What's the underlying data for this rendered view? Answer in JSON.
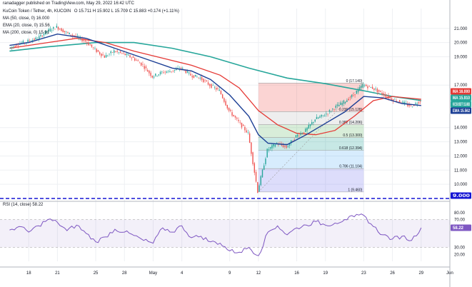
{
  "header": {
    "published": "ranadagger published on TradingView.com, May 29, 2022 16:42 UTC",
    "symbol_line": "KuCoin Token / Tether, 4h, KUCOIN",
    "ohlc": "O 15.711  H 15.902  L 15.709  C 15.883  +0.174 (+1.11%)",
    "ma50": "MA (50, close, 0)  16.000",
    "ema20": "EMA (20, close, 0)  15.56",
    "ma200": "MA (200, close, 0)  15.91",
    "rsi": "RSI (14, close)  58.22"
  },
  "colors": {
    "up": "#26a69a",
    "down": "#ef5350",
    "ema20": "#1c3f95",
    "ma50": "#e53935",
    "ma200": "#26a69a",
    "rsi": "#7e57c2",
    "support": "#1515d4",
    "usd": "#2962ff"
  },
  "chart_data": {
    "type": "candlestick",
    "x_ticks": [
      "18",
      "21",
      "25",
      "28",
      "May",
      "4",
      "9",
      "12",
      "16",
      "19",
      "23",
      "26",
      "29",
      "Jun"
    ],
    "y_ticks": [
      21.0,
      20.0,
      19.0,
      17.0,
      14.0,
      13.0,
      12.0,
      11.0,
      10.0
    ],
    "ylim": [
      9.0,
      22.4
    ],
    "support_level": 9.0,
    "price_tags": [
      {
        "label": "MA",
        "value": "16.000",
        "color": "#e53935"
      },
      {
        "label": "MA",
        "value": "15.910",
        "color": "#26a69a"
      },
      {
        "label": "KCSUSDT",
        "value": "15.883",
        "color": "#26a69a"
      },
      {
        "label": "EMA",
        "value": "15.562",
        "color": "#1c3f95"
      },
      {
        "label": "",
        "value": "9.000",
        "color": "#1515d4"
      }
    ],
    "fibonacci": [
      {
        "ratio": "0",
        "price": "17.140"
      },
      {
        "ratio": "0.236",
        "price": "15.128"
      },
      {
        "ratio": "0.382",
        "price": "14.206"
      },
      {
        "ratio": "0.5",
        "price": "13.300"
      },
      {
        "ratio": "0.618",
        "price": "12.394"
      },
      {
        "ratio": "0.786",
        "price": "11.104"
      },
      {
        "ratio": "1",
        "price": "9.460"
      }
    ],
    "price_path": [
      [
        "Apr 16",
        19.6
      ],
      [
        "Apr 17",
        19.9
      ],
      [
        "Apr 18",
        20.1
      ],
      [
        "Apr 19",
        20.3
      ],
      [
        "Apr 20",
        20.8
      ],
      [
        "Apr 21",
        21.1
      ],
      [
        "Apr 22",
        20.7
      ],
      [
        "Apr 23",
        20.4
      ],
      [
        "Apr 24",
        20.1
      ],
      [
        "Apr 25",
        19.5
      ],
      [
        "Apr 26",
        19.0
      ],
      [
        "Apr 27",
        19.4
      ],
      [
        "Apr 28",
        19.2
      ],
      [
        "Apr 29",
        18.9
      ],
      [
        "Apr 30",
        18.4
      ],
      [
        "May 1",
        17.6
      ],
      [
        "May 2",
        17.9
      ],
      [
        "May 3",
        18.0
      ],
      [
        "May 4",
        18.2
      ],
      [
        "May 5",
        17.7
      ],
      [
        "May 6",
        17.5
      ],
      [
        "May 7",
        17.0
      ],
      [
        "May 8",
        16.6
      ],
      [
        "May 9",
        15.2
      ],
      [
        "May 10",
        14.4
      ],
      [
        "May 11",
        13.6
      ],
      [
        "May 12",
        9.5
      ],
      [
        "May 13",
        12.4
      ],
      [
        "May 14",
        12.9
      ],
      [
        "May 15",
        12.6
      ],
      [
        "May 16",
        13.4
      ],
      [
        "May 17",
        13.8
      ],
      [
        "May 18",
        14.6
      ],
      [
        "May 19",
        14.9
      ],
      [
        "May 20",
        15.4
      ],
      [
        "May 21",
        15.8
      ],
      [
        "May 22",
        16.3
      ],
      [
        "May 23",
        17.0
      ],
      [
        "May 24",
        16.8
      ],
      [
        "May 25",
        16.4
      ],
      [
        "May 26",
        16.0
      ],
      [
        "May 27",
        15.8
      ],
      [
        "May 28",
        15.5
      ],
      [
        "May 29",
        15.9
      ]
    ],
    "ema20": [
      [
        "Apr 16",
        19.8
      ],
      [
        "Apr 18",
        20.0
      ],
      [
        "Apr 21",
        20.6
      ],
      [
        "Apr 24",
        20.3
      ],
      [
        "Apr 27",
        19.6
      ],
      [
        "Apr 30",
        18.9
      ],
      [
        "May 3",
        18.2
      ],
      [
        "May 5",
        18.0
      ],
      [
        "May 7",
        17.4
      ],
      [
        "May 9",
        16.3
      ],
      [
        "May 11",
        14.8
      ],
      [
        "May 12",
        13.5
      ],
      [
        "May 13",
        12.9
      ],
      [
        "May 15",
        12.8
      ],
      [
        "May 17",
        13.5
      ],
      [
        "May 19",
        14.3
      ],
      [
        "May 21",
        15.1
      ],
      [
        "May 23",
        16.2
      ],
      [
        "May 25",
        16.1
      ],
      [
        "May 27",
        15.7
      ],
      [
        "May 29",
        15.56
      ]
    ],
    "ma50": [
      [
        "Apr 16",
        19.6
      ],
      [
        "Apr 20",
        20.0
      ],
      [
        "Apr 23",
        20.3
      ],
      [
        "Apr 26",
        20.0
      ],
      [
        "Apr 29",
        19.4
      ],
      [
        "May 2",
        18.9
      ],
      [
        "May 5",
        18.4
      ],
      [
        "May 8",
        17.7
      ],
      [
        "May 10",
        16.8
      ],
      [
        "May 12",
        15.2
      ],
      [
        "May 14",
        14.2
      ],
      [
        "May 16",
        13.6
      ],
      [
        "May 18",
        13.5
      ],
      [
        "May 20",
        13.8
      ],
      [
        "May 22",
        14.8
      ],
      [
        "May 24",
        15.9
      ],
      [
        "May 26",
        16.2
      ],
      [
        "May 29",
        16.0
      ]
    ],
    "ma200": [
      [
        "Apr 16",
        19.4
      ],
      [
        "Apr 20",
        19.7
      ],
      [
        "Apr 25",
        20.0
      ],
      [
        "Apr 29",
        20.0
      ],
      [
        "May 3",
        19.6
      ],
      [
        "May 7",
        19.0
      ],
      [
        "May 11",
        18.2
      ],
      [
        "May 15",
        17.5
      ],
      [
        "May 19",
        17.1
      ],
      [
        "May 23",
        16.6
      ],
      [
        "May 26",
        16.2
      ],
      [
        "May 29",
        15.91
      ]
    ],
    "rsi": {
      "levels": [
        70,
        30
      ],
      "y_ticks": [
        80,
        70,
        30,
        20
      ],
      "values": [
        [
          "Apr 16",
          55
        ],
        [
          "Apr 17",
          60
        ],
        [
          "Apr 18",
          52
        ],
        [
          "Apr 19",
          61
        ],
        [
          "Apr 20",
          70
        ],
        [
          "Apr 21",
          66
        ],
        [
          "Apr 22",
          54
        ],
        [
          "Apr 23",
          62
        ],
        [
          "Apr 24",
          50
        ],
        [
          "Apr 25",
          38
        ],
        [
          "Apr 26",
          45
        ],
        [
          "Apr 27",
          56
        ],
        [
          "Apr 28",
          52
        ],
        [
          "Apr 29",
          47
        ],
        [
          "Apr 30",
          40
        ],
        [
          "May 1",
          36
        ],
        [
          "May 2",
          58
        ],
        [
          "May 3",
          52
        ],
        [
          "May 4",
          61
        ],
        [
          "May 5",
          44
        ],
        [
          "May 6",
          46
        ],
        [
          "May 7",
          38
        ],
        [
          "May 8",
          36
        ],
        [
          "May 9",
          25
        ],
        [
          "May 10",
          23
        ],
        [
          "May 11",
          30
        ],
        [
          "May 12",
          18
        ],
        [
          "May 13",
          52
        ],
        [
          "May 14",
          61
        ],
        [
          "May 15",
          48
        ],
        [
          "May 16",
          58
        ],
        [
          "May 17",
          62
        ],
        [
          "May 18",
          67
        ],
        [
          "May 19",
          62
        ],
        [
          "May 20",
          65
        ],
        [
          "May 21",
          70
        ],
        [
          "May 22",
          74
        ],
        [
          "May 23",
          76
        ],
        [
          "May 24",
          60
        ],
        [
          "May 25",
          48
        ],
        [
          "May 26",
          42
        ],
        [
          "May 27",
          46
        ],
        [
          "May 28",
          40
        ],
        [
          "May 29",
          58.22
        ]
      ]
    }
  }
}
